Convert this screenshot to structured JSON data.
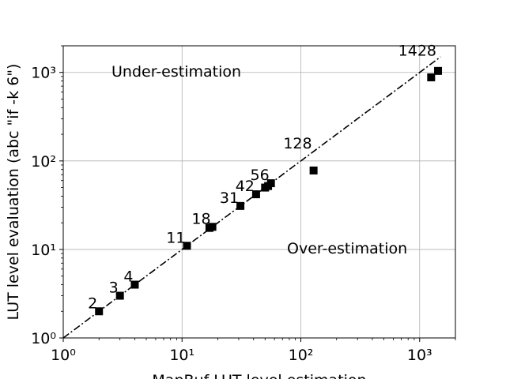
{
  "chart_data": {
    "type": "scatter",
    "title": "",
    "xlabel": "MapBuf LUT level estimation",
    "ylabel": "LUT level evaluation (abc \"if -k 6\")",
    "xscale": "log",
    "yscale": "log",
    "xlim": [
      1,
      2000
    ],
    "ylim": [
      1,
      2000
    ],
    "grid": true,
    "x_tick_labels": [
      "10⁰",
      "10¹",
      "10²",
      "10³"
    ],
    "y_tick_labels": [
      "10⁰",
      "10¹",
      "10²",
      "10³"
    ],
    "x_ticks": [
      1,
      10,
      100,
      1000
    ],
    "y_ticks": [
      1,
      10,
      100,
      1000
    ],
    "reference_line": {
      "style": "dash-dot",
      "equation": "y = x"
    },
    "marker": "square",
    "marker_color": "#000000",
    "points": [
      {
        "x": 2,
        "y": 2
      },
      {
        "x": 3,
        "y": 3
      },
      {
        "x": 4,
        "y": 4
      },
      {
        "x": 11,
        "y": 11
      },
      {
        "x": 17,
        "y": 17.5
      },
      {
        "x": 18,
        "y": 18
      },
      {
        "x": 31,
        "y": 31
      },
      {
        "x": 42,
        "y": 42
      },
      {
        "x": 50,
        "y": 50
      },
      {
        "x": 53,
        "y": 52
      },
      {
        "x": 56,
        "y": 56
      },
      {
        "x": 128,
        "y": 78
      },
      {
        "x": 1250,
        "y": 880
      },
      {
        "x": 1428,
        "y": 1040
      }
    ],
    "point_labels": [
      {
        "text": "2",
        "x": 2,
        "y": 2
      },
      {
        "text": "3",
        "x": 3,
        "y": 3
      },
      {
        "text": "4",
        "x": 4,
        "y": 4
      },
      {
        "text": "11",
        "x": 11,
        "y": 11
      },
      {
        "text": "18",
        "x": 18,
        "y": 18
      },
      {
        "text": "31",
        "x": 31,
        "y": 31
      },
      {
        "text": "42",
        "x": 42,
        "y": 42
      },
      {
        "text": "56",
        "x": 56,
        "y": 56
      },
      {
        "text": "128",
        "x": 128,
        "y": 128
      },
      {
        "text": "1428",
        "x": 1428,
        "y": 1428
      }
    ],
    "annotations": [
      {
        "text": "Under-estimation"
      },
      {
        "text": "Over-estimation"
      }
    ]
  }
}
